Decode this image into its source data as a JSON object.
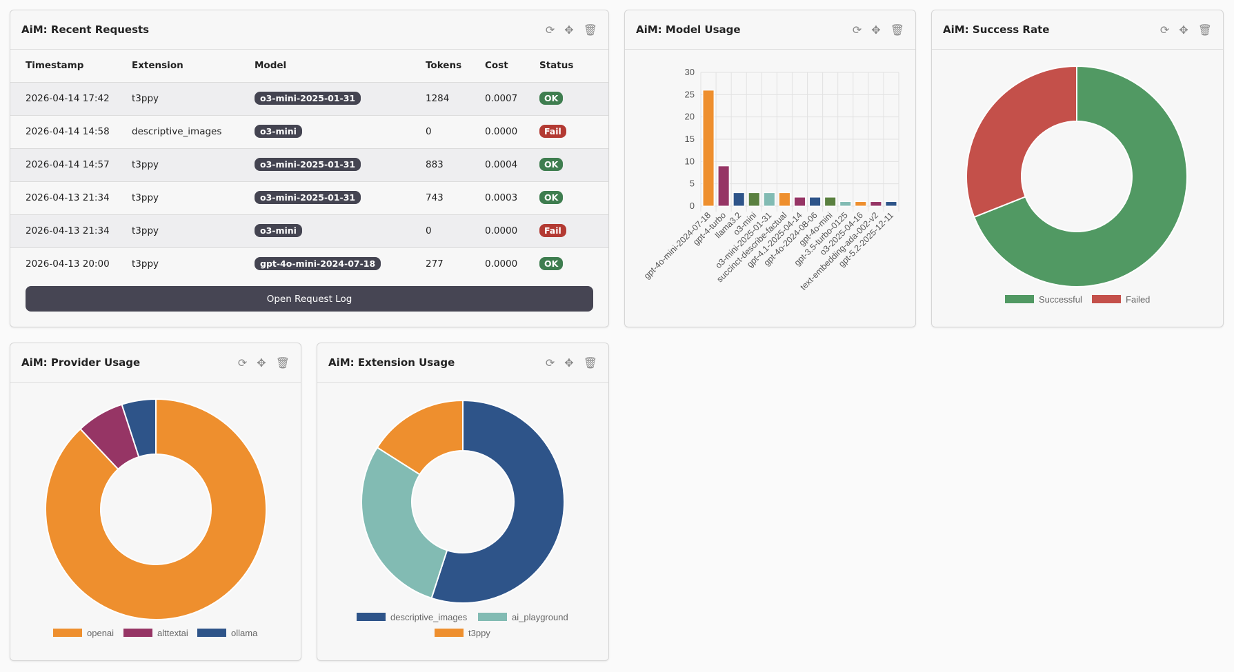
{
  "panels": {
    "recent": "AiM: Recent Requests",
    "model": "AiM: Model Usage",
    "success": "AiM: Success Rate",
    "provider": "AiM: Provider Usage",
    "extension": "AiM: Extension Usage"
  },
  "icons": [
    "refresh-icon",
    "move-icon",
    "trash-icon"
  ],
  "table": {
    "headers": [
      "Timestamp",
      "Extension",
      "Model",
      "Tokens",
      "Cost",
      "Status"
    ],
    "rows": [
      [
        "2026-04-14 17:42",
        "t3ppy",
        "o3-mini-2025-01-31",
        "1284",
        "0.0007",
        "OK"
      ],
      [
        "2026-04-14 14:58",
        "descriptive_images",
        "o3-mini",
        "0",
        "0.0000",
        "Fail"
      ],
      [
        "2026-04-14 14:57",
        "t3ppy",
        "o3-mini-2025-01-31",
        "883",
        "0.0004",
        "OK"
      ],
      [
        "2026-04-13 21:34",
        "t3ppy",
        "o3-mini-2025-01-31",
        "743",
        "0.0003",
        "OK"
      ],
      [
        "2026-04-13 21:34",
        "t3ppy",
        "o3-mini",
        "0",
        "0.0000",
        "Fail"
      ],
      [
        "2026-04-13 20:00",
        "t3ppy",
        "gpt-4o-mini-2024-07-18",
        "277",
        "0.0000",
        "OK"
      ]
    ],
    "button": "Open Request Log"
  },
  "chart_data": [
    {
      "type": "bar",
      "categories": [
        "gpt-4o-mini-2024-07-18",
        "gpt-4-turbo",
        "llama3.2",
        "o3-mini",
        "o3-mini-2025-01-31",
        "succinct-describe-factual",
        "gpt-4.1-2025-04-14",
        "gpt-4o-2024-08-06",
        "gpt-4o-mini",
        "gpt-3.5-turbo-0125",
        "o3-2025-04-16",
        "text-embedding-ada-002-v2",
        "gpt-5.2-2025-12-11"
      ],
      "values": [
        26,
        9,
        3,
        3,
        3,
        3,
        2,
        2,
        2,
        1,
        1,
        1,
        1
      ],
      "colors": [
        "#ee8f2e",
        "#963565",
        "#2e5489",
        "#5a8040",
        "#82bbb3",
        "#ee8f2e",
        "#963565",
        "#2e5489",
        "#5a8040",
        "#82bbb3",
        "#ee8f2e",
        "#963565",
        "#2e5489"
      ],
      "ylim": [
        0,
        30
      ],
      "yticks": [
        0,
        5,
        10,
        15,
        20,
        25,
        30
      ],
      "grid": true
    },
    {
      "type": "pie",
      "donut": true,
      "labels": [
        "Successful",
        "Failed"
      ],
      "values": [
        69,
        31
      ],
      "colors": [
        "#519963",
        "#c4504a"
      ],
      "legend": "bottom"
    },
    {
      "type": "pie",
      "donut": true,
      "labels": [
        "openai",
        "alttextai",
        "ollama"
      ],
      "values": [
        88,
        7,
        5
      ],
      "colors": [
        "#ee8f2e",
        "#963565",
        "#2e5489"
      ],
      "legend": "bottom"
    },
    {
      "type": "pie",
      "donut": true,
      "labels": [
        "descriptive_images",
        "ai_playground",
        "t3ppy"
      ],
      "values": [
        55,
        29,
        16
      ],
      "colors": [
        "#2e5489",
        "#82bbb3",
        "#ee8f2e"
      ],
      "legend": "bottom"
    }
  ]
}
